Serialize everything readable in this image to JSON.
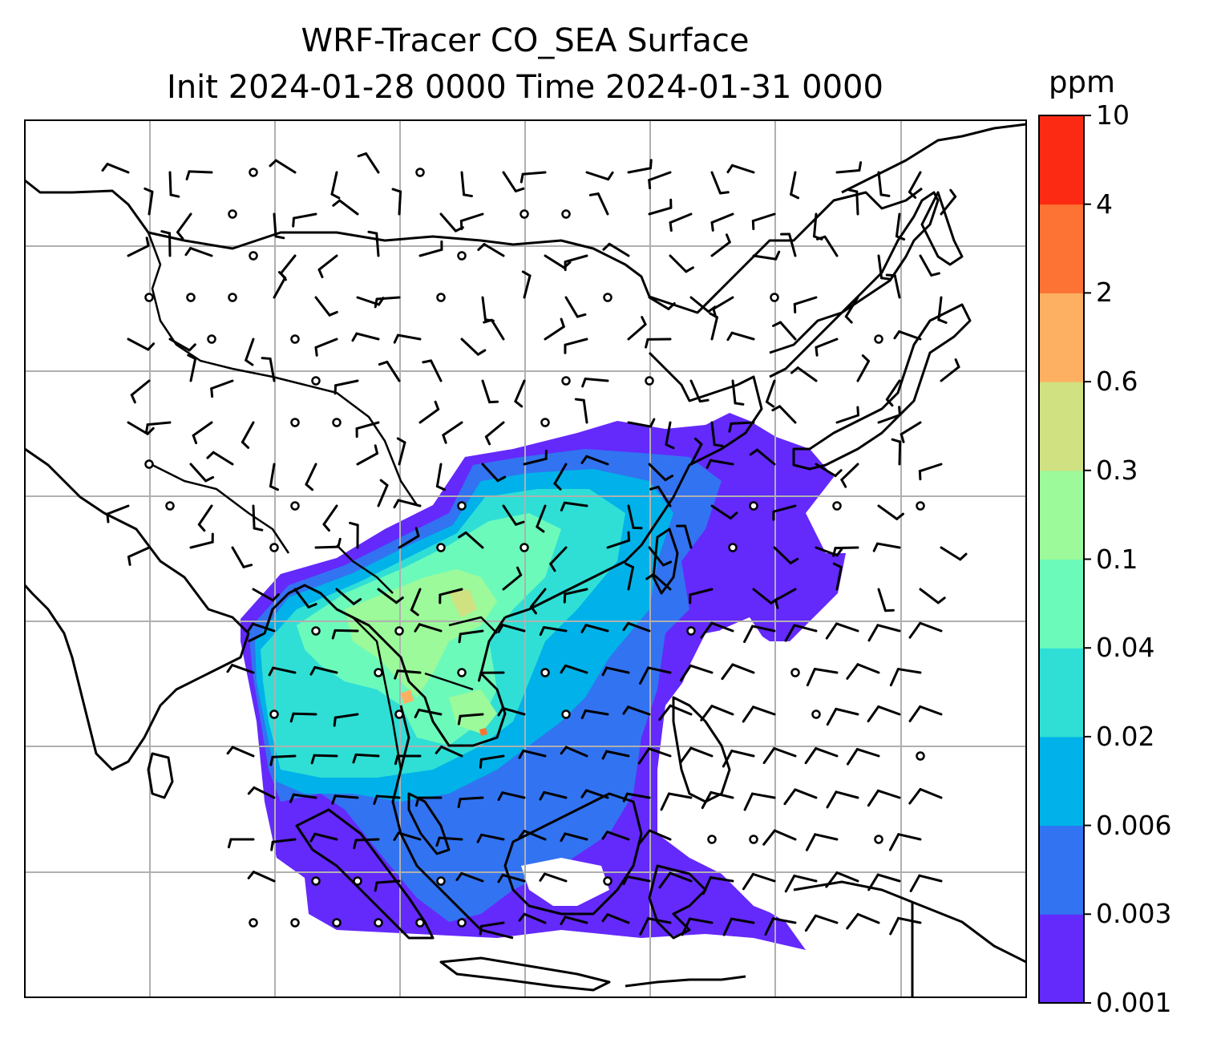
{
  "title": {
    "line1": "WRF-Tracer CO_SEA Surface",
    "line2": "Init 2024-01-28 0000 Time 2024-01-31 0000"
  },
  "colorbar": {
    "unit": "ppm",
    "ticks": [
      "0.001",
      "0.003",
      "0.006",
      "0.02",
      "0.04",
      "0.1",
      "0.3",
      "0.6",
      "2",
      "4",
      "10"
    ],
    "colors": [
      "#6429fb",
      "#3273f1",
      "#00b2e9",
      "#2fdfd5",
      "#6cfabb",
      "#9cfa9a",
      "#d0e181",
      "#fdb061",
      "#fd7334",
      "#fd2a13"
    ]
  },
  "map": {
    "field_classes": [
      "#6429fb",
      "#3273f1",
      "#00b2e9",
      "#2fdfd5",
      "#6cfabb",
      "#9cfa9a",
      "#d0e181",
      "#fdb061",
      "#fd7334",
      "#fd2a13"
    ],
    "gridline_color": "#b0b0b0",
    "coastline_color": "#000000",
    "wind_barbs": true
  }
}
